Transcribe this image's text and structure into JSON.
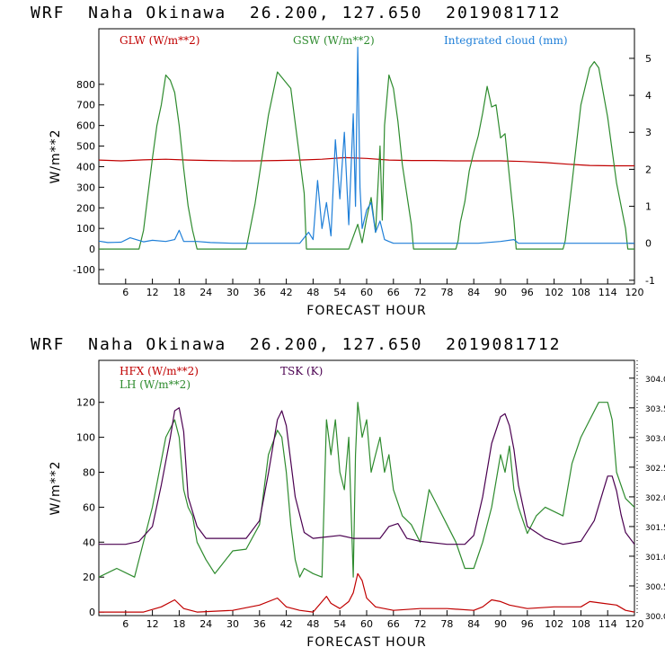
{
  "panels": [
    {
      "title": "WRF  Naha Okinawa  26.200, 127.650  2019081712",
      "chart_data": {
        "type": "line",
        "xlabel": "FORECAST HOUR",
        "ylabel": "W/m**2",
        "xlim": [
          0,
          120
        ],
        "ylim": [
          -170,
          1070
        ],
        "xticks": [
          6,
          12,
          18,
          24,
          30,
          36,
          42,
          48,
          54,
          60,
          66,
          72,
          78,
          84,
          90,
          96,
          102,
          108,
          114,
          120
        ],
        "yticks": [
          -100,
          0,
          100,
          200,
          300,
          400,
          500,
          600,
          700,
          800
        ],
        "y2lim": [
          -1.1,
          5.8
        ],
        "y2ticks": [
          -1,
          0,
          1,
          2,
          3,
          4,
          5
        ],
        "grid": false,
        "legend_position": "top",
        "series": [
          {
            "name": "GLW (W/m**2)",
            "color": "#c00000",
            "axis": "left",
            "x": [
              0,
              5,
              10,
              15,
              20,
              25,
              30,
              35,
              40,
              45,
              50,
              55,
              60,
              65,
              70,
              75,
              80,
              85,
              90,
              95,
              100,
              105,
              110,
              115,
              120
            ],
            "y": [
              432,
              428,
              433,
              436,
              432,
              430,
              428,
              428,
              430,
              432,
              436,
              444,
              440,
              432,
              430,
              430,
              428,
              428,
              428,
              425,
              420,
              412,
              406,
              404,
              404
            ]
          },
          {
            "name": "GSW (W/m**2)",
            "color": "#2e8b2e",
            "axis": "left",
            "x": [
              0,
              9,
              10,
              12,
              13,
              14,
              15,
              16,
              17,
              18,
              19,
              20,
              21,
              22,
              33,
              35,
              38,
              40,
              43,
              46,
              46.5,
              56,
              57,
              58,
              59,
              60,
              61,
              62,
              63,
              63.5,
              64,
              65,
              66,
              67,
              68,
              70,
              70.5,
              80,
              80.5,
              81,
              82,
              83,
              84,
              85,
              86,
              87,
              88,
              89,
              90,
              91,
              92,
              93,
              93.5,
              104,
              104.5,
              106,
              108,
              110,
              111,
              112,
              114,
              116,
              118,
              118.5,
              120
            ],
            "y": [
              0,
              0,
              90,
              440,
              600,
              700,
              845,
              820,
              760,
              600,
              390,
              210,
              90,
              0,
              0,
              220,
              650,
              860,
              780,
              270,
              0,
              0,
              60,
              120,
              30,
              150,
              250,
              80,
              500,
              140,
              600,
              845,
              780,
              620,
              410,
              120,
              0,
              0,
              40,
              130,
              230,
              380,
              470,
              550,
              660,
              790,
              690,
              700,
              540,
              560,
              350,
              140,
              0,
              0,
              40,
              320,
              700,
              880,
              910,
              880,
              640,
              320,
              100,
              0,
              0
            ]
          },
          {
            "name": "Integrated cloud (mm)",
            "color": "#1f7fd8",
            "axis": "right",
            "x": [
              0,
              2,
              5,
              7,
              10,
              12,
              15,
              17,
              18,
              19,
              22,
              25,
              30,
              45,
              47,
              48,
              49,
              50,
              51,
              52,
              53,
              54,
              55,
              56,
              57,
              57.5,
              58,
              58.5,
              59,
              60,
              61,
              62,
              63,
              64,
              65,
              66,
              70,
              85,
              90,
              93,
              94,
              100,
              120
            ],
            "y": [
              0.06,
              0.02,
              0.03,
              0.15,
              0.04,
              0.08,
              0.05,
              0.1,
              0.35,
              0.05,
              0.05,
              0.02,
              0,
              0,
              0.3,
              0.1,
              1.7,
              0.4,
              1.1,
              0.2,
              2.8,
              1.2,
              3.0,
              0.5,
              3.5,
              1.0,
              5.3,
              1.5,
              0.4,
              0.9,
              1.1,
              0.3,
              0.6,
              0.1,
              0.05,
              0,
              0,
              0,
              0.05,
              0.1,
              0,
              0,
              0
            ]
          }
        ]
      }
    },
    {
      "title": "WRF  Naha Okinawa  26.200, 127.650  2019081712",
      "chart_data": {
        "type": "line",
        "xlabel": "FORECAST HOUR",
        "ylabel": "W/m**2",
        "xlim": [
          0,
          120
        ],
        "ylim": [
          -2,
          144
        ],
        "xticks": [
          6,
          12,
          18,
          24,
          30,
          36,
          42,
          48,
          54,
          60,
          66,
          72,
          78,
          84,
          90,
          96,
          102,
          108,
          114,
          120
        ],
        "yticks": [
          0,
          20,
          40,
          60,
          80,
          100,
          120
        ],
        "y2lim": [
          300.0,
          304.3
        ],
        "y2ticks": [
          "300.0",
          "300.5",
          "301.0",
          "301.5",
          "302.0",
          "302.5",
          "303.0",
          "303.5",
          "304.0"
        ],
        "grid": false,
        "legend_position": "top",
        "series": [
          {
            "name": "HFX (W/m**2)",
            "color": "#c00000",
            "axis": "left",
            "x": [
              0,
              10,
              14,
              17,
              19,
              22,
              30,
              36,
              40,
              42,
              45,
              48,
              51,
              52,
              54,
              56,
              57,
              58,
              59,
              60,
              62,
              66,
              72,
              78,
              84,
              86,
              88,
              90,
              92,
              96,
              102,
              108,
              110,
              113,
              116,
              118,
              120
            ],
            "y": [
              0,
              0,
              3,
              7,
              2,
              0,
              1,
              4,
              8,
              3,
              1,
              0,
              9,
              5,
              2,
              6,
              11,
              22,
              18,
              8,
              3,
              1,
              2,
              2,
              1,
              3,
              7,
              6,
              4,
              2,
              3,
              3,
              6,
              5,
              4,
              1,
              0
            ]
          },
          {
            "name": "LH (W/m**2)",
            "color": "#2e8b2e",
            "axis": "left",
            "x": [
              0,
              4,
              8,
              12,
              15,
              17,
              18,
              19,
              20,
              21,
              22,
              24,
              26,
              30,
              33,
              36,
              38,
              40,
              41,
              42,
              43,
              44,
              45,
              46,
              48,
              50,
              51,
              52,
              53,
              54,
              55,
              56,
              57,
              57.5,
              58,
              59,
              60,
              61,
              62,
              63,
              64,
              65,
              66,
              68,
              70,
              72,
              74,
              76,
              78,
              80,
              82,
              84,
              86,
              88,
              90,
              91,
              92,
              93,
              94,
              96,
              98,
              100,
              104,
              106,
              108,
              110,
              112,
              114,
              115,
              116,
              118,
              120
            ],
            "y": [
              20,
              25,
              20,
              60,
              100,
              110,
              100,
              70,
              60,
              55,
              40,
              30,
              22,
              35,
              36,
              50,
              90,
              104,
              100,
              80,
              50,
              30,
              20,
              25,
              22,
              20,
              110,
              90,
              110,
              80,
              70,
              100,
              20,
              90,
              120,
              100,
              110,
              80,
              90,
              100,
              80,
              90,
              70,
              55,
              50,
              40,
              70,
              60,
              50,
              40,
              25,
              25,
              40,
              60,
              90,
              80,
              95,
              70,
              60,
              45,
              55,
              60,
              55,
              85,
              100,
              110,
              120,
              120,
              110,
              80,
              65,
              60
            ]
          },
          {
            "name": "TSK (K)",
            "color": "#4a0050",
            "axis": "right",
            "x": [
              0,
              6,
              9,
              12,
              14,
              16,
              17,
              18,
              19,
              20,
              22,
              24,
              30,
              33,
              36,
              38,
              40,
              41,
              42,
              44,
              46,
              48,
              54,
              57,
              60,
              63,
              65,
              67,
              69,
              72,
              78,
              82,
              84,
              86,
              88,
              90,
              91,
              92,
              93,
              94,
              96,
              100,
              104,
              108,
              111,
              113,
              114,
              115,
              116,
              117,
              118,
              120
            ],
            "y": [
              301.2,
              301.2,
              301.25,
              301.5,
              302.2,
              303.0,
              303.45,
              303.5,
              303.1,
              302.0,
              301.5,
              301.3,
              301.3,
              301.3,
              301.6,
              302.4,
              303.3,
              303.45,
              303.2,
              302.0,
              301.4,
              301.3,
              301.35,
              301.3,
              301.3,
              301.3,
              301.5,
              301.55,
              301.3,
              301.25,
              301.2,
              301.2,
              301.35,
              302.0,
              302.9,
              303.35,
              303.4,
              303.2,
              302.8,
              302.2,
              301.5,
              301.3,
              301.2,
              301.25,
              301.6,
              302.1,
              302.35,
              302.35,
              302.1,
              301.7,
              301.4,
              301.2
            ]
          }
        ]
      }
    }
  ]
}
